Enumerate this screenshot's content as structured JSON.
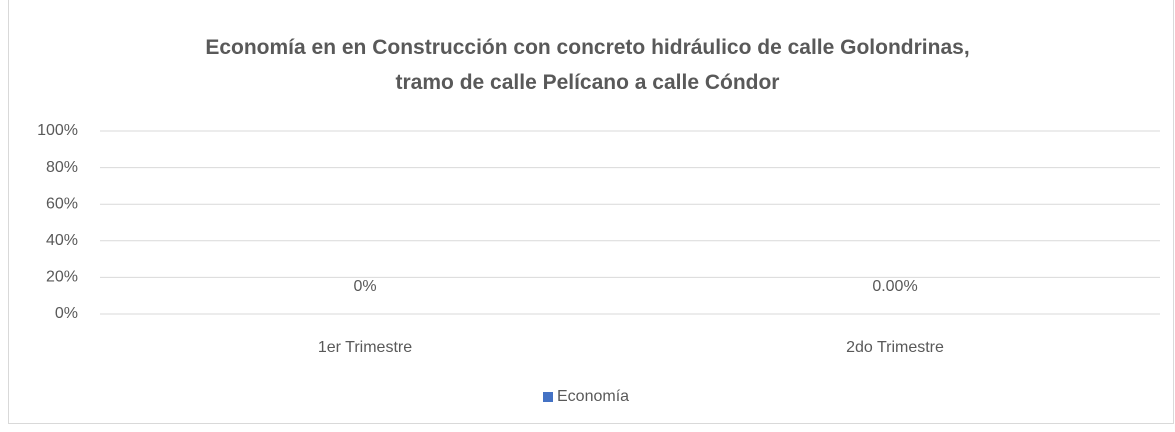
{
  "chart_data": {
    "type": "bar",
    "title": "Economía en en Construcción con concreto hidráulico de calle Golondrinas,\ntramo de calle Pelícano a calle Cóndor",
    "categories": [
      "1er Trimestre",
      "2do Trimestre"
    ],
    "series": [
      {
        "name": "Economía",
        "color": "#4472c4",
        "values": [
          0,
          0
        ],
        "value_labels": [
          "0%",
          "0.00%"
        ]
      }
    ],
    "ylim": [
      0,
      100
    ],
    "yticks": [
      {
        "value": 0,
        "label": "0%"
      },
      {
        "value": 20,
        "label": "20%"
      },
      {
        "value": 40,
        "label": "40%"
      },
      {
        "value": 60,
        "label": "60%"
      },
      {
        "value": 80,
        "label": "80%"
      },
      {
        "value": 100,
        "label": "100%"
      }
    ],
    "grid": true,
    "legend": "bottom"
  }
}
